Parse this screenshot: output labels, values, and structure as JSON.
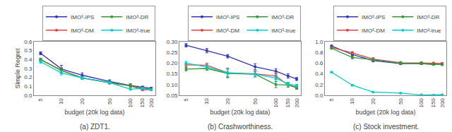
{
  "chart_data": [
    {
      "type": "line",
      "title": "(a) ZDT1.",
      "xlabel": "budget (20k log data)",
      "ylabel": "Simple Regret",
      "x": [
        5,
        10,
        20,
        50,
        100,
        150,
        200
      ],
      "series": [
        {
          "name": "IMO³-IPS",
          "color": "#3333bb",
          "values": [
            0.47,
            0.295,
            0.225,
            0.155,
            0.11,
            0.09,
            0.078
          ],
          "errors": [
            0.015,
            0.04,
            0.025,
            0.018,
            0.018,
            0.012,
            0.01
          ]
        },
        {
          "name": "IMO³-DM",
          "color": "#dd4444",
          "values": [
            0.4,
            0.28,
            0.195,
            0.14,
            0.105,
            0.062,
            0.063
          ],
          "errors": [
            0.015,
            0.028,
            0.015,
            0.014,
            0.016,
            0.01,
            0.008
          ]
        },
        {
          "name": "IMO³-DR",
          "color": "#339933",
          "values": [
            0.4,
            0.278,
            0.195,
            0.142,
            0.108,
            0.078,
            0.068
          ],
          "errors": [
            0.015,
            0.028,
            0.015,
            0.014,
            0.016,
            0.01,
            0.008
          ]
        },
        {
          "name": "IMO³-true",
          "color": "#00cccc",
          "values": [
            0.375,
            0.25,
            0.195,
            0.142,
            0.068,
            0.076,
            0.062
          ],
          "errors": [
            0.015,
            0.022,
            0.015,
            0.014,
            0.01,
            0.01,
            0.008
          ]
        }
      ],
      "xlim": [
        4.0,
        230
      ],
      "xticks": [
        5,
        10,
        20,
        50,
        100,
        150,
        200
      ],
      "ylim": [
        0.0,
        0.6
      ],
      "yticks": [
        {
          "value": 0.0,
          "label": "0.0"
        },
        0.1,
        0.2,
        0.3,
        0.4,
        0.5,
        0.6
      ],
      "log": "x",
      "grid": false,
      "legend": "upper right",
      "marker": "circle"
    },
    {
      "type": "line",
      "title": "(b) Crashworthiness.",
      "xlabel": "budget (20k log data)",
      "x": [
        5,
        10,
        20,
        50,
        100,
        150,
        200
      ],
      "series": [
        {
          "name": "IMO³-IPS",
          "color": "#3333bb",
          "values": [
            0.283,
            0.258,
            0.232,
            0.183,
            0.162,
            0.14,
            0.126
          ],
          "errors": [
            0.008,
            0.01,
            0.008,
            0.014,
            0.012,
            0.01,
            0.007
          ]
        },
        {
          "name": "IMO³-DM",
          "color": "#dd4444",
          "values": [
            0.192,
            0.19,
            0.155,
            0.15,
            0.14,
            0.098,
            0.088
          ],
          "errors": [
            0.008,
            0.01,
            0.022,
            0.014,
            0.016,
            0.01,
            0.007
          ]
        },
        {
          "name": "IMO³-DR",
          "color": "#339933",
          "values": [
            0.172,
            0.175,
            0.152,
            0.148,
            0.1,
            0.098,
            0.085
          ],
          "errors": [
            0.008,
            0.008,
            0.02,
            0.012,
            0.014,
            0.01,
            0.007
          ]
        },
        {
          "name": "IMO³-true",
          "color": "#00cccc",
          "values": [
            0.2,
            0.182,
            0.155,
            0.148,
            0.13,
            0.103,
            0.095
          ],
          "errors": [
            0.008,
            0.008,
            0.018,
            0.012,
            0.014,
            0.008,
            0.006
          ]
        }
      ],
      "xlim": [
        4.0,
        230
      ],
      "xticks": [
        5,
        10,
        20,
        50,
        100,
        150,
        200
      ],
      "ylim": [
        0.05,
        0.3
      ],
      "yticks": [
        0.05,
        {
          "value": 0.1,
          "label": "0.10"
        },
        0.15,
        {
          "value": 0.2,
          "label": "0.20"
        },
        0.25,
        {
          "value": 0.3,
          "label": "0.30"
        }
      ],
      "log": "x",
      "grid": false,
      "legend": "upper right",
      "marker": "circle"
    },
    {
      "type": "line",
      "title": "(c) Stock investment.",
      "xlabel": "budget (20k log data)",
      "x": [
        5,
        10,
        20,
        50,
        100,
        150,
        200
      ],
      "series": [
        {
          "name": "IMO³-IPS",
          "color": "#3333bb",
          "values": [
            0.92,
            0.76,
            0.645,
            0.59,
            0.592,
            0.575,
            0.578
          ],
          "errors": [
            0.012,
            0.022,
            0.022,
            0.018,
            0.018,
            0.015,
            0.012
          ]
        },
        {
          "name": "IMO³-DM",
          "color": "#dd4444",
          "values": [
            0.89,
            0.79,
            0.675,
            0.608,
            0.602,
            0.598,
            0.592
          ],
          "errors": [
            0.012,
            0.025,
            0.025,
            0.02,
            0.02,
            0.018,
            0.015
          ]
        },
        {
          "name": "IMO³-DR",
          "color": "#339933",
          "values": [
            0.875,
            0.705,
            0.662,
            0.598,
            0.592,
            0.578,
            0.572
          ],
          "errors": [
            0.012,
            0.025,
            0.025,
            0.02,
            0.02,
            0.018,
            0.015
          ]
        },
        {
          "name": "IMO³-true",
          "color": "#00cccc",
          "values": [
            0.43,
            0.188,
            0.06,
            0.04,
            0.006,
            0.004,
            0.01
          ],
          "errors": [
            0.008,
            0.008,
            0.008,
            0.006,
            0.004,
            0.004,
            0.004
          ]
        }
      ],
      "xlim": [
        4.0,
        230
      ],
      "xticks": [
        5,
        10,
        20,
        50,
        100,
        150,
        200
      ],
      "ylim": [
        0.0,
        1.0
      ],
      "yticks": [
        {
          "value": 0.0,
          "label": "0.0"
        },
        0.2,
        0.4,
        0.6,
        0.8,
        {
          "value": 1.0,
          "label": "1.0"
        }
      ],
      "log": "x",
      "grid": false,
      "legend": "upper right",
      "marker": "circle"
    }
  ]
}
